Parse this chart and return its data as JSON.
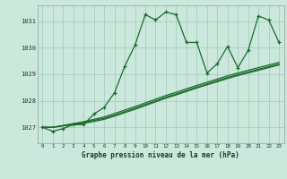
{
  "xlabel": "Graphe pression niveau de la mer (hPa)",
  "xlim": [
    -0.5,
    23.5
  ],
  "ylim": [
    1026.4,
    1031.6
  ],
  "yticks": [
    1027,
    1028,
    1029,
    1030,
    1031
  ],
  "xticks": [
    0,
    1,
    2,
    3,
    4,
    5,
    6,
    7,
    8,
    9,
    10,
    11,
    12,
    13,
    14,
    15,
    16,
    17,
    18,
    19,
    20,
    21,
    22,
    23
  ],
  "background_color": "#cce8dd",
  "grid_color": "#99ccbb",
  "line_color": "#1a6b2a",
  "line_jagged": [
    1027.0,
    1026.85,
    1026.95,
    1027.1,
    1027.1,
    1027.5,
    1027.75,
    1028.3,
    1029.3,
    1030.1,
    1031.25,
    1031.05,
    1031.35,
    1031.25,
    1030.2,
    1030.2,
    1029.05,
    1029.4,
    1030.05,
    1029.25,
    1029.9,
    1031.2,
    1031.05,
    1030.2
  ],
  "line_straight1": [
    1027.0,
    1027.0,
    1027.05,
    1027.1,
    1027.15,
    1027.22,
    1027.3,
    1027.42,
    1027.55,
    1027.68,
    1027.82,
    1027.96,
    1028.1,
    1028.22,
    1028.35,
    1028.48,
    1028.6,
    1028.72,
    1028.84,
    1028.95,
    1029.05,
    1029.15,
    1029.25,
    1029.35
  ],
  "line_straight2": [
    1027.0,
    1027.0,
    1027.06,
    1027.12,
    1027.18,
    1027.26,
    1027.34,
    1027.46,
    1027.59,
    1027.72,
    1027.86,
    1028.0,
    1028.14,
    1028.26,
    1028.39,
    1028.52,
    1028.64,
    1028.76,
    1028.88,
    1028.99,
    1029.09,
    1029.19,
    1029.29,
    1029.39
  ],
  "line_straight3": [
    1027.0,
    1027.0,
    1027.07,
    1027.14,
    1027.21,
    1027.3,
    1027.39,
    1027.52,
    1027.65,
    1027.78,
    1027.92,
    1028.06,
    1028.2,
    1028.32,
    1028.45,
    1028.58,
    1028.7,
    1028.82,
    1028.94,
    1029.05,
    1029.15,
    1029.25,
    1029.35,
    1029.45
  ]
}
